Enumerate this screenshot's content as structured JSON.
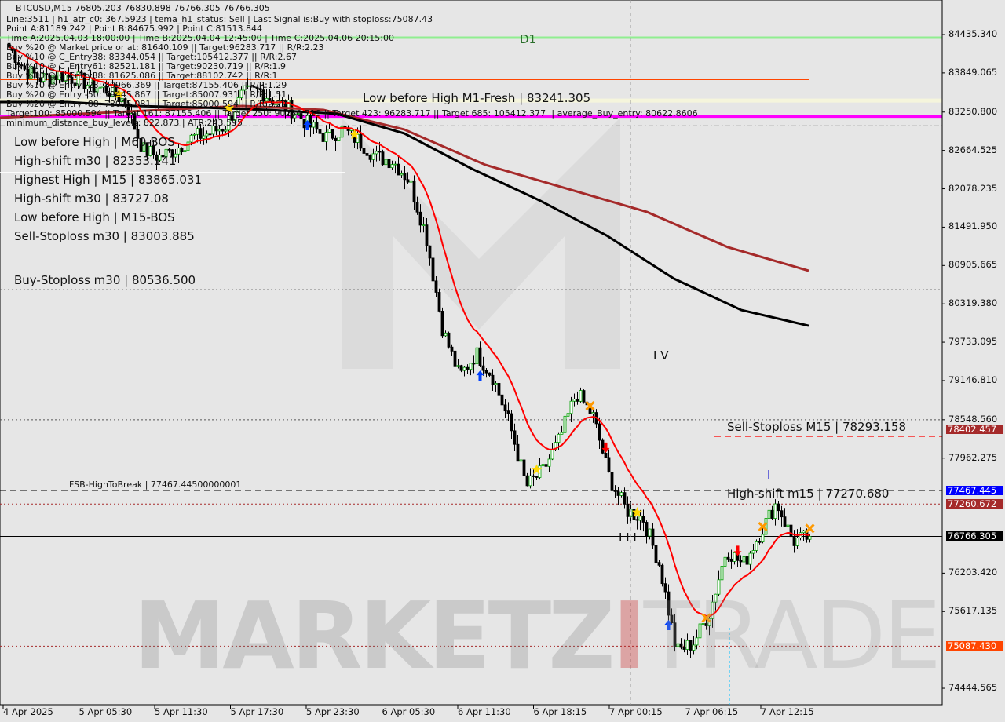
{
  "header": {
    "symbol_line": "BTCUSD,M15  76805.203 76830.898 76766.305 76766.305",
    "lines": [
      "Line:3511 | h1_atr_c0: 367.5923 | tema_h1_status: Sell | Last Signal is:Buy with stoploss:75087.43",
      "Point A:81189.242 | Point B:84675.992 | Point C:81513.844",
      "Time A:2025.04.03 18:00:00 | Time B:2025.04.04 12:45:00 | Time C:2025.04.06 20:15:00",
      "Buy %20 @ Market price or at: 81640.109 || Target:96283.717 || R/R:2.23",
      "Buy %10 @ C_Entry38: 83344.054 || Target:105412.377 || R/R:2.67",
      "Buy %10 @ C_Entry61: 82521.181 || Target:90230.719 || R/R:1.9",
      "Buy %10 @ C_Entry88: 81625.086 || Target:88102.742 || R/R:1",
      "Buy %10 @ Entry -23: 80966.369 || Target:87155.406 || R/R:1.29",
      "Buy %20 @ Entry -50: 79445.867 || Target:85007.931 || R/R:1.51",
      "Buy %20 @ Entry -88: 78095.081 || Target:85000.594 || R/R:2.29",
      "Target100: 85000.594 || Target 161: 87155.406 || Target 250: 90230.719 || Target 423: 96283.717 || Target 685: 105412.377 || average_Buy_entry: 80622.8606",
      "minimum_distance_buy_levels: 822.873 | ATR:243.595"
    ]
  },
  "labels": {
    "m60_bos": "Low before High | M60-BOS",
    "highest_high": "Highest High | M15 | 83865.031",
    "high_shift_m30_top": "High-shift m30 | 83727.08",
    "m15_bos": "Low before High | M15-BOS",
    "sell_sl_m30": "Sell-Stoploss m30 | 83003.885",
    "m1_fresh": "Low before High   M1-Fresh | 83241.305",
    "high_shift_m30": "High-shift m30 | 82353.141",
    "buy_sl_m30": "Buy-Stoploss m30 | 80536.500",
    "sell_sl_m15": "Sell-Stoploss M15 | 78293.158",
    "high_shift_m15": "High-shift m15 | 77270.680",
    "fsb": "FSB-HighToBreak | 77467.44500000001",
    "d1": "D1",
    "wave_iv": "I V",
    "wave_iii": "I I I",
    "wave_i": "I",
    "watermark": "MARKETZ",
    "watermark_i": "I",
    "watermark_trade": "TRADE"
  },
  "chart_data": {
    "type": "candlestick",
    "symbol": "BTCUSD",
    "timeframe": "M15",
    "ylim": [
      74200,
      84700
    ],
    "y_ticks": [
      "84435.340",
      "83849.065",
      "83250.800",
      "82664.525",
      "82078.235",
      "81491.950",
      "80905.665",
      "80319.380",
      "79733.095",
      "79146.810",
      "78548.560",
      "77962.275",
      "76203.420",
      "75617.135",
      "74444.565"
    ],
    "x_ticks": [
      "4 Apr 2025",
      "5 Apr 05:30",
      "5 Apr 11:30",
      "5 Apr 17:30",
      "5 Apr 23:30",
      "6 Apr 05:30",
      "6 Apr 11:30",
      "6 Apr 18:15",
      "7 Apr 00:15",
      "7 Apr 06:15",
      "7 Apr 12:15"
    ],
    "price_path": [
      84243,
      83883,
      83763,
      83824,
      83763,
      83644,
      83584,
      83404,
      82684,
      82564,
      82684,
      82864,
      82924,
      83044,
      83524,
      83584,
      83404,
      83284,
      83044,
      82864,
      82984,
      82804,
      82564,
      82504,
      82204,
      81365,
      79926,
      79206,
      79566,
      79206,
      78486,
      77527,
      77767,
      78247,
      78966,
      78606,
      77647,
      77167,
      77047,
      76328,
      75009,
      75129,
      75608,
      76568,
      76328,
      76808,
      77287,
      76688,
      76766
    ],
    "last_price": "76766.305",
    "price_boxes": [
      {
        "value": "78402.457",
        "color": "#a52a2a"
      },
      {
        "value": "77467.445",
        "color": "#0000ff"
      },
      {
        "value": "77260.672",
        "color": "#a52a2a"
      },
      {
        "value": "76766.305",
        "color": "#000000"
      },
      {
        "value": "75087.430",
        "color": "#ff4500"
      }
    ],
    "levels": [
      {
        "name": "d1",
        "price": 84387,
        "color": "#90ee90",
        "style": "solid",
        "width": 3
      },
      {
        "name": "orange-level",
        "price": 83745,
        "color": "#ff4500",
        "style": "solid",
        "width": 1
      },
      {
        "name": "beige-level",
        "price": 83426,
        "color": "#f5f5dc",
        "style": "solid",
        "width": 5
      },
      {
        "name": "magenta-level",
        "price": 83187,
        "color": "#ff00ff",
        "style": "solid",
        "width": 4
      },
      {
        "name": "dark-level",
        "price": 83040,
        "color": "#333333",
        "style": "dashdot",
        "width": 1
      },
      {
        "name": "buy-stoploss-m30",
        "price": 80536.5,
        "color": "#555555",
        "style": "dotted",
        "width": 1
      },
      {
        "name": "level-78548",
        "price": 78548.56,
        "color": "#555555",
        "style": "dotted",
        "width": 1
      },
      {
        "name": "sell-stoploss-m15",
        "price": 78293.158,
        "color": "#ff0000",
        "style": "dashed",
        "width": 1
      },
      {
        "name": "fsb-high-to-break",
        "price": 77467.445,
        "color": "#000000",
        "style": "dashed",
        "width": 1
      },
      {
        "name": "level-77260",
        "price": 77260.672,
        "color": "#a52a2a",
        "style": "dotted",
        "width": 1
      },
      {
        "name": "last-price",
        "price": 76766.305,
        "color": "#000000",
        "style": "solid",
        "width": 1
      },
      {
        "name": "stoploss",
        "price": 75087.43,
        "color": "#a52a2a",
        "style": "dotted",
        "width": 1
      }
    ],
    "ma_black": [
      83404,
      83404,
      83344,
      83320,
      83284,
      83224,
      82924,
      82384,
      81904,
      81365,
      80705,
      80225,
      79985
    ],
    "ma_brown": [
      83164,
      83224,
      83284,
      83344,
      83284,
      82984,
      82444,
      82084,
      81724,
      81185,
      80825
    ],
    "colors": {
      "bull": "#00a000",
      "bear": "#000000",
      "ma_fast": "#ff0000",
      "ma_black": "#000000",
      "ma_brown": "#a52a2a"
    }
  }
}
